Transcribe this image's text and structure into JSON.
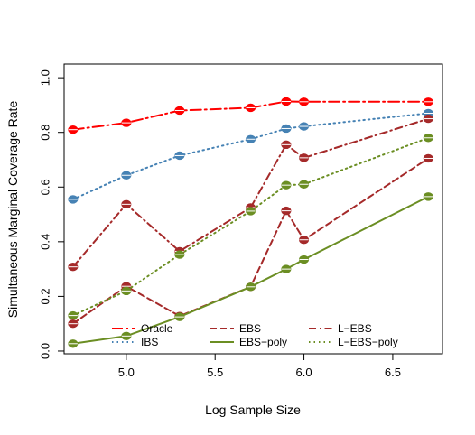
{
  "chart_data": {
    "type": "line",
    "title": "",
    "xlabel": "Log Sample Size",
    "ylabel": "Simultaneous Marginal Coverage Rate",
    "xlim": [
      4.65,
      6.78
    ],
    "ylim": [
      -0.01,
      1.05
    ],
    "xticks": [
      5.0,
      5.5,
      6.0,
      6.5
    ],
    "xtick_labels": [
      "5.0",
      "5.5",
      "6.0",
      "6.5"
    ],
    "yticks": [
      0.0,
      0.2,
      0.4,
      0.6,
      0.8,
      1.0
    ],
    "ytick_labels": [
      "0.0",
      "0.2",
      "0.4",
      "0.6",
      "0.8",
      "1.0"
    ],
    "grid": false,
    "legend_position": "bottom",
    "x": [
      4.7,
      5.0,
      5.3,
      5.7,
      5.9,
      6.0,
      6.7
    ],
    "series": [
      {
        "name": "Oracle",
        "color": "#ff0000",
        "dash": "longdash-dot",
        "values": [
          0.81,
          0.835,
          0.88,
          0.89,
          0.913,
          0.912,
          0.912
        ]
      },
      {
        "name": "IBS",
        "color": "#4682b4",
        "dash": "dotted",
        "values": [
          0.555,
          0.643,
          0.715,
          0.775,
          0.814,
          0.822,
          0.87
        ]
      },
      {
        "name": "EBS",
        "color": "#a52a2a",
        "dash": "dashed",
        "values": [
          0.1,
          0.237,
          0.128,
          0.235,
          0.513,
          0.407,
          0.705
        ]
      },
      {
        "name": "EBS−poly",
        "color": "#6b8e23",
        "dash": "solid",
        "values": [
          0.027,
          0.055,
          0.125,
          0.235,
          0.3,
          0.335,
          0.565
        ]
      },
      {
        "name": "L−EBS",
        "color": "#a52a2a",
        "dash": "dashdot",
        "values": [
          0.308,
          0.537,
          0.365,
          0.525,
          0.755,
          0.707,
          0.85
        ]
      },
      {
        "name": "L−EBS−poly",
        "color": "#6b8e23",
        "dash": "dotted",
        "values": [
          0.13,
          0.22,
          0.353,
          0.512,
          0.607,
          0.61,
          0.78
        ]
      }
    ],
    "legend_order": [
      0,
      2,
      4,
      1,
      3,
      5
    ]
  }
}
